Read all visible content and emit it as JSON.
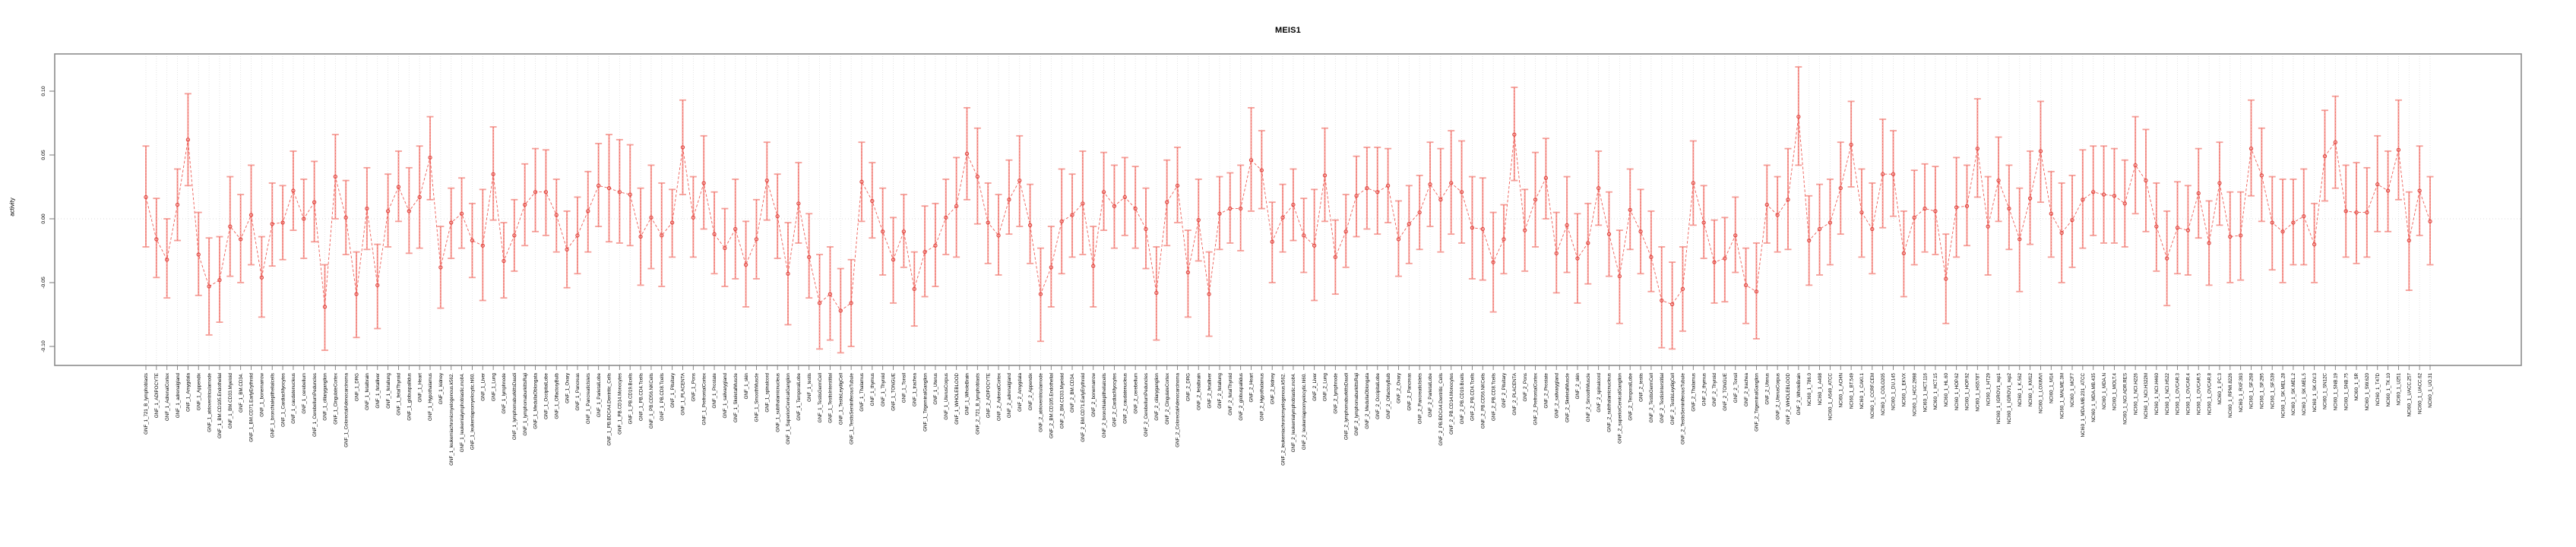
{
  "chart_data": {
    "type": "line",
    "subtype": "points-with-error-bars",
    "title": "MEIS1",
    "ylabel": "activity",
    "xlabel": "",
    "ylim": [
      -0.115,
      0.124
    ],
    "yticks": [
      {
        "value": -0.1,
        "label": "-0.10"
      },
      {
        "value": -0.05,
        "label": "-0.05"
      },
      {
        "value": 0.0,
        "label": "0.00"
      },
      {
        "value": 0.05,
        "label": "0.05"
      },
      {
        "value": 0.1,
        "label": "0.10"
      }
    ],
    "grid": "vertical-dotted-per-category, dotted-zero-line",
    "legend_position": "none",
    "colors": {
      "series": "#ED5E57",
      "marker_stroke": "#E0443E",
      "error_bar": "#F59E98",
      "gridline": "#DEDEDE",
      "zero_line": "#CFCFCF",
      "panel_border": "#8C8C8C",
      "tick": "#7A7A7A",
      "text": "#000000"
    },
    "categories": [
      "GNF_1_721_B_lymphoblasts",
      "GNF_1_ADIPOCYTE",
      "GNF_1_AdrenalCortex",
      "GNF_1_adrenalgland",
      "GNF_1_Amygdala",
      "GNF_1_Appendix",
      "GNF_1_atrioventricularnode",
      "GNF_1_BM.CD105.Endothelial",
      "GNF_1_BM.CD33.Myeloid",
      "GNF_1_BM.CD34.",
      "GNF_1_BM.CD71.EarlyErythroid",
      "GNF_1_bonemarrow",
      "GNF_1_bronchialepithelialcells",
      "GNF_1_CardiacMyocytes",
      "GNF_1_caudatenucleus",
      "GNF_1_cerebellum",
      "GNF_1_CerebellumPeduncles",
      "GNF_1_ciliaryganglion",
      "GNF_1_CingulateCortex",
      "GNF_1_ColorectalAdenocarcinoma",
      "GNF_1_DRG",
      "GNF_1_fetalbrain",
      "GNF_1_fetalliver",
      "GNF_1_fetallung",
      "GNF_1_fetalThyroid",
      "GNF_1_globuspallidus",
      "GNF_1_Heart",
      "GNF_1_Hypothalamus",
      "GNF_1_kidney",
      "GNF_1_leukemiachronicmyelogenous.k562.",
      "GNF_1_leukemialymphoblastic.molt4.",
      "GNF_1_leukemiapromyelocytic.hl60.",
      "GNF_1_Liver",
      "GNF_1_Lung",
      "GNF_1_lymphnode",
      "GNF_1_lymphomaburkittsDaudi",
      "GNF_1_lymphomaburkittsRaji",
      "GNF_1_MedullaOblongata",
      "GNF_1_OccipitalLobe",
      "GNF_1_OlfactoryBulb",
      "GNF_1_Ovary",
      "GNF_1_Pancreas",
      "GNF_1_PancreaticIslets",
      "GNF_1_ParietalLobe",
      "GNF_1_PB.BDCA4.Dentritic_Cells",
      "GNF_1_PB.CD14.Monocytes",
      "GNF_1_PB.CD19.Bcells",
      "GNF_1_PB.CD4.Tcells",
      "GNF_1_PB.CD56.NKCells",
      "GNF_1_PB.CD8.Tcells",
      "GNF_1_Pituitary",
      "GNF_1_PLACENTA",
      "GNF_1_Pons",
      "GNF_1_PrefrontalCortex",
      "GNF_1_Prostate",
      "GNF_1_salivarygland",
      "GNF_1_SkeletalMuscle",
      "GNF_1_skin",
      "GNF_1_SmoothMuscle",
      "GNF_1_spinalcord",
      "GNF_1_subthalamicnucleus",
      "GNF_1_SuperiorCervicalGanglion",
      "GNF_1_TemporalLobe",
      "GNF_1_testis",
      "GNF_1_TestisGermCell",
      "GNF_1_TestisInterstitial",
      "GNF_1_TestisLeydigCell",
      "GNF_1_TestisSeminiferousTubule",
      "GNF_1_Thalamus",
      "GNF_1_thymus",
      "GNF_1_Thyroid",
      "GNF_1_TONGUE",
      "GNF_1_Tonsil",
      "GNF_1_trachea",
      "GNF_1_TrigeminalGanglion",
      "GNF_1_Uterus",
      "GNF_1_UterusCorpus",
      "GNF_1_WHOLEBLOOD",
      "GNF_1_WholeBrain",
      "GNF_2_721_B_lymphoblasts",
      "GNF_2_ADIPOCYTE",
      "GNF_2_AdrenalCortex",
      "GNF_2_adrenalgland",
      "GNF_2_Amygdala",
      "GNF_2_Appendix",
      "GNF_2_atrioventricularnode",
      "GNF_2_BM.CD105.Endothelial",
      "GNF_2_BM.CD33.Myeloid",
      "GNF_2_BM.CD34.",
      "GNF_2_BM.CD71.EarlyErythroid",
      "GNF_2_bonemarrow",
      "GNF_2_bronchialepithelialcells",
      "GNF_2_CardiacMyocytes",
      "GNF_2_caudatenucleus",
      "GNF_2_cerebellum",
      "GNF_2_CerebellumPeduncles",
      "GNF_2_ciliaryganglion",
      "GNF_2_CingulateCortex",
      "GNF_2_ColorectalAdenocarcinoma",
      "GNF_2_DRG",
      "GNF_2_fetalbrain",
      "GNF_2_fetalliver",
      "GNF_2_fetallung",
      "GNF_2_fetalThyroid",
      "GNF_2_globuspallidus",
      "GNF_2_Heart",
      "GNF_2_Hypothalamus",
      "GNF_2_kidney",
      "GNF_2_leukemiachronicmyelogenous.k562.",
      "GNF_2_leukemialymphoblastic.molt4.",
      "GNF_2_leukemiapromyelocytic.hl60.",
      "GNF_2_Liver",
      "GNF_2_Lung",
      "GNF_2_lymphnode",
      "GNF_2_lymphomaburkittsDaudi",
      "GNF_2_lymphomaburkittsRaji",
      "GNF_2_MedullaOblongata",
      "GNF_2_OccipitalLobe",
      "GNF_2_OlfactoryBulb",
      "GNF_2_Ovary",
      "GNF_2_Pancreas",
      "GNF_2_PancreaticIslets",
      "GNF_2_ParietalLobe",
      "GNF_2_PB.BDCA4.Dentritic_Cells",
      "GNF_2_PB.CD14.Monocytes",
      "GNF_2_PB.CD19.Bcells",
      "GNF_2_PB.CD4.Tcells",
      "GNF_2_PB.CD56.NKCells",
      "GNF_2_PB.CD8.Tcells",
      "GNF_2_Pituitary",
      "GNF_2_PLACENTA",
      "GNF_2_Pons",
      "GNF_2_PrefrontalCortex",
      "GNF_2_Prostate",
      "GNF_2_salivarygland",
      "GNF_2_SkeletalMuscle",
      "GNF_2_skin",
      "GNF_2_SmoothMuscle",
      "GNF_2_spinalcord",
      "GNF_2_subthalamicnucleus",
      "GNF_2_superiorCervicalGanglion",
      "GNF_2_TemporalLobe",
      "GNF_2_testis",
      "GNF_2_TestisGermCell",
      "GNF_2_TestisInterstitial",
      "GNF_2_TestisLeydigCell",
      "GNF_2_TestisSeminiferousTubule",
      "GNF_2_Thalamus",
      "GNF_2_thymus",
      "GNF_2_Thyroid",
      "GNF_2_TONGUE",
      "GNF_2_Tonsil",
      "GNF_2_trachea",
      "GNF_2_TrigeminalGanglion",
      "GNF_2_Uterus",
      "GNF_2_UterusCorpus",
      "GNF_2_WHOLEBLOOD",
      "GNF_2_WholeBrain",
      "NCI60_1_786.0",
      "NCI60_1_A498",
      "NCI60_1_A549_ATCC",
      "NCI60_1_ACHN",
      "NCI60_1_BT.549",
      "NCI60_1_CAKI.1",
      "NCI60_1_CCRF.CEM",
      "NCI60_1_COLO205",
      "NCI60_1_DU.145",
      "NCI60_1_EKVX",
      "NCI60_1_HCC.2998",
      "NCI60_1_HCT.116",
      "NCI60_1_HCT.15",
      "NCI60_1_HL.60",
      "NCI60_1_HOP.62",
      "NCI60_1_HOP.92",
      "NCI60_1_HS578T",
      "NCI60_1_HT29",
      "NCI60_1_IGROV1_rep1",
      "NCI60_1_IGROV1_rep2",
      "NCI60_1_K.562",
      "NCI60_1_KM12",
      "NCI60_1_LOXIMVI",
      "NCI60_1_M14",
      "NCI60_1_MALME.3M",
      "NCI60_1_MCF7",
      "NCI60_1_MDA.MB.231_ATCC",
      "NCI60_1_MDA.MB.435",
      "NCI60_1_MDA.N",
      "NCI60_1_MOLT.4",
      "NCI60_1_NCI.ADR.RES",
      "NCI60_1_NCI.H226",
      "NCI60_1_NCI.H322M",
      "NCI60_1_NCI.H460",
      "NCI60_1_NCI.H522",
      "NCI60_1_OVCAR.3",
      "NCI60_1_OVCAR.4",
      "NCI60_1_OVCAR.5",
      "NCI60_1_OVCAR.8",
      "NCI60_1_PC.3",
      "NCI60_1_RPMI.8226",
      "NCI60_1_RXF.393",
      "NCI60_1_SF.268",
      "NCI60_1_SF.295",
      "NCI60_1_SF.539",
      "NCI60_1_SK.MEL.28",
      "NCI60_1_SK.MEL.2",
      "NCI60_1_SK.MEL.5",
      "NCI60_1_SK.OV.3",
      "NCI60_1_SN12C",
      "NCI60_1_SNB.19",
      "NCI60_1_SNB.75",
      "NCI60_1_SR",
      "NCI60_1_SW.620",
      "NCI60_1_T47D",
      "NCI60_1_TK.10",
      "NCI60_1_U251",
      "NCI60_1_UACC.257",
      "NCI60_1_UACC.62",
      "NCI60_1_UO.31"
    ],
    "values": [
      0.017,
      -0.016,
      -0.032,
      0.011,
      0.062,
      -0.028,
      -0.053,
      -0.048,
      -0.006,
      -0.016,
      0.003,
      -0.046,
      -0.004,
      -0.003,
      0.022,
      0.0,
      0.013,
      -0.069,
      0.033,
      0.001,
      -0.059,
      0.008,
      -0.052,
      0.006,
      0.025,
      0.006,
      0.017,
      0.048,
      -0.038,
      -0.003,
      0.004,
      -0.017,
      -0.021,
      0.035,
      -0.033,
      -0.013,
      0.011,
      0.021,
      0.021,
      0.003,
      -0.024,
      -0.013,
      0.006,
      0.026,
      0.024,
      0.021,
      0.019,
      -0.014,
      0.001,
      -0.013,
      -0.003,
      0.056,
      0.001,
      0.028,
      -0.012,
      -0.023,
      -0.008,
      -0.036,
      -0.016,
      0.03,
      0.002,
      -0.043,
      0.012,
      -0.03,
      -0.066,
      -0.059,
      -0.072,
      -0.066,
      0.029,
      0.014,
      -0.01,
      -0.032,
      -0.01,
      -0.055,
      -0.026,
      -0.021,
      0.001,
      0.01,
      0.051,
      0.033,
      -0.003,
      -0.013,
      0.015,
      0.03,
      -0.005,
      -0.059,
      -0.038,
      -0.002,
      0.003,
      0.012,
      -0.037,
      0.021,
      0.01,
      0.017,
      0.008,
      -0.008,
      -0.058,
      0.013,
      0.026,
      -0.042,
      -0.001,
      -0.059,
      0.004,
      0.008,
      0.008,
      0.046,
      0.038,
      -0.018,
      0.001,
      0.011,
      -0.013,
      -0.021,
      0.034,
      -0.03,
      -0.01,
      0.018,
      0.024,
      0.021,
      0.026,
      -0.016,
      -0.004,
      0.005,
      0.027,
      0.015,
      0.028,
      0.021,
      -0.007,
      -0.008,
      -0.034,
      -0.016,
      0.066,
      -0.009,
      0.015,
      0.032,
      -0.027,
      -0.005,
      -0.031,
      -0.019,
      0.024,
      -0.012,
      -0.045,
      0.007,
      -0.01,
      -0.03,
      -0.064,
      -0.067,
      -0.055,
      0.028,
      -0.003,
      -0.034,
      -0.031,
      -0.013,
      -0.052,
      -0.057,
      0.011,
      0.003,
      0.015,
      0.08,
      -0.017,
      -0.008,
      -0.003,
      0.024,
      0.058,
      0.005,
      -0.008,
      0.035,
      0.035,
      -0.027,
      0.001,
      0.008,
      0.006,
      -0.047,
      0.009,
      0.01,
      0.055,
      -0.006,
      0.03,
      0.008,
      -0.016,
      0.016,
      0.053,
      0.004,
      -0.011,
      -0.001,
      0.015,
      0.021,
      0.019,
      0.018,
      0.012,
      0.042,
      0.03,
      -0.006,
      -0.031,
      -0.007,
      -0.009,
      0.02,
      -0.019,
      0.028,
      -0.014,
      -0.013,
      0.055,
      0.034,
      -0.003,
      -0.01,
      -0.003,
      0.002,
      -0.02,
      0.049,
      0.06,
      0.006,
      0.005,
      0.005,
      0.027,
      0.022,
      0.054,
      -0.017,
      0.022,
      -0.002
    ],
    "ci_low": [
      -0.022,
      -0.046,
      -0.062,
      -0.017,
      0.026,
      -0.06,
      -0.091,
      -0.081,
      -0.045,
      -0.05,
      -0.036,
      -0.077,
      -0.037,
      -0.032,
      -0.009,
      -0.031,
      -0.018,
      -0.103,
      0.0,
      -0.028,
      -0.093,
      -0.024,
      -0.086,
      -0.022,
      -0.002,
      -0.027,
      -0.023,
      0.015,
      -0.07,
      -0.031,
      -0.023,
      -0.046,
      -0.064,
      -0.001,
      -0.062,
      -0.041,
      -0.021,
      -0.01,
      -0.013,
      -0.026,
      -0.054,
      -0.043,
      -0.026,
      -0.006,
      -0.018,
      -0.019,
      -0.021,
      -0.052,
      -0.039,
      -0.053,
      -0.03,
      0.019,
      -0.03,
      -0.008,
      -0.043,
      -0.053,
      -0.047,
      -0.069,
      -0.047,
      -0.001,
      -0.031,
      -0.083,
      -0.019,
      -0.062,
      -0.102,
      -0.095,
      -0.105,
      -0.1,
      -0.002,
      -0.015,
      -0.044,
      -0.066,
      -0.038,
      -0.084,
      -0.061,
      -0.053,
      -0.028,
      -0.03,
      0.015,
      -0.004,
      -0.035,
      -0.044,
      -0.012,
      -0.006,
      -0.035,
      -0.096,
      -0.069,
      -0.043,
      -0.03,
      -0.028,
      -0.069,
      -0.009,
      -0.023,
      -0.013,
      -0.023,
      -0.039,
      -0.095,
      -0.021,
      -0.003,
      -0.077,
      -0.033,
      -0.092,
      -0.024,
      -0.019,
      -0.025,
      0.006,
      0.008,
      -0.05,
      -0.026,
      -0.017,
      -0.042,
      -0.064,
      -0.002,
      -0.059,
      -0.038,
      -0.014,
      -0.008,
      -0.012,
      -0.003,
      -0.045,
      -0.035,
      -0.024,
      -0.006,
      -0.026,
      -0.012,
      -0.019,
      -0.047,
      -0.048,
      -0.073,
      -0.043,
      0.03,
      -0.041,
      -0.022,
      0.0,
      -0.058,
      -0.042,
      -0.066,
      -0.051,
      -0.005,
      -0.045,
      -0.082,
      -0.024,
      -0.043,
      -0.057,
      -0.101,
      -0.102,
      -0.088,
      -0.005,
      -0.031,
      -0.066,
      -0.065,
      -0.042,
      -0.082,
      -0.094,
      -0.019,
      -0.026,
      -0.024,
      0.042,
      -0.052,
      -0.044,
      -0.036,
      -0.012,
      0.025,
      -0.03,
      -0.043,
      -0.007,
      0.002,
      -0.061,
      -0.036,
      -0.026,
      -0.028,
      -0.082,
      -0.03,
      -0.021,
      0.017,
      -0.044,
      -0.002,
      -0.024,
      -0.057,
      -0.02,
      0.013,
      -0.03,
      -0.05,
      -0.038,
      -0.023,
      -0.013,
      -0.019,
      -0.019,
      -0.022,
      0.004,
      -0.01,
      -0.041,
      -0.068,
      -0.043,
      -0.044,
      -0.015,
      -0.052,
      -0.005,
      -0.05,
      -0.048,
      0.018,
      -0.002,
      -0.04,
      -0.05,
      -0.036,
      -0.036,
      -0.05,
      0.014,
      0.024,
      -0.03,
      -0.035,
      -0.03,
      -0.01,
      -0.01,
      0.015,
      -0.056,
      -0.013,
      -0.036
    ],
    "ci_high": [
      0.057,
      0.016,
      0.0,
      0.039,
      0.098,
      0.005,
      -0.015,
      -0.014,
      0.033,
      0.019,
      0.042,
      -0.014,
      0.028,
      0.026,
      0.053,
      0.031,
      0.045,
      -0.036,
      0.066,
      0.03,
      -0.026,
      0.04,
      -0.02,
      0.035,
      0.053,
      0.04,
      0.057,
      0.08,
      -0.006,
      0.024,
      0.032,
      0.012,
      0.023,
      0.072,
      -0.003,
      0.015,
      0.043,
      0.055,
      0.054,
      0.031,
      0.006,
      0.017,
      0.037,
      0.059,
      0.066,
      0.062,
      0.058,
      0.024,
      0.042,
      0.028,
      0.023,
      0.093,
      0.033,
      0.065,
      0.021,
      0.008,
      0.031,
      -0.002,
      0.015,
      0.06,
      0.035,
      -0.003,
      0.044,
      0.004,
      -0.028,
      -0.022,
      -0.039,
      -0.032,
      0.06,
      0.044,
      0.024,
      0.001,
      0.019,
      -0.026,
      0.01,
      0.012,
      0.031,
      0.048,
      0.087,
      0.071,
      0.028,
      0.019,
      0.046,
      0.065,
      0.027,
      -0.023,
      -0.006,
      0.039,
      0.035,
      0.053,
      -0.006,
      0.052,
      0.042,
      0.048,
      0.041,
      0.024,
      -0.022,
      0.046,
      0.056,
      -0.009,
      0.031,
      -0.026,
      0.033,
      0.036,
      0.042,
      0.087,
      0.069,
      0.013,
      0.027,
      0.039,
      0.016,
      0.023,
      0.071,
      -0.001,
      0.019,
      0.049,
      0.056,
      0.056,
      0.055,
      0.014,
      0.026,
      0.034,
      0.06,
      0.055,
      0.069,
      0.061,
      0.033,
      0.032,
      0.005,
      0.011,
      0.103,
      0.023,
      0.052,
      0.063,
      0.005,
      0.033,
      0.004,
      0.012,
      0.053,
      0.021,
      -0.009,
      0.039,
      0.023,
      0.006,
      -0.022,
      -0.034,
      -0.022,
      0.061,
      0.026,
      -0.001,
      0.001,
      0.017,
      -0.023,
      -0.019,
      0.042,
      0.033,
      0.055,
      0.119,
      0.018,
      0.027,
      0.031,
      0.06,
      0.092,
      0.039,
      0.028,
      0.078,
      0.069,
      0.006,
      0.038,
      0.043,
      0.041,
      -0.012,
      0.048,
      0.042,
      0.094,
      0.033,
      0.064,
      0.042,
      0.024,
      0.053,
      0.092,
      0.037,
      0.028,
      0.034,
      0.054,
      0.057,
      0.057,
      0.055,
      0.046,
      0.08,
      0.07,
      0.028,
      0.006,
      0.029,
      0.026,
      0.055,
      0.014,
      0.06,
      0.021,
      0.021,
      0.093,
      0.071,
      0.033,
      0.031,
      0.031,
      0.039,
      0.012,
      0.085,
      0.096,
      0.042,
      0.044,
      0.04,
      0.065,
      0.053,
      0.093,
      0.021,
      0.057,
      0.033
    ]
  }
}
